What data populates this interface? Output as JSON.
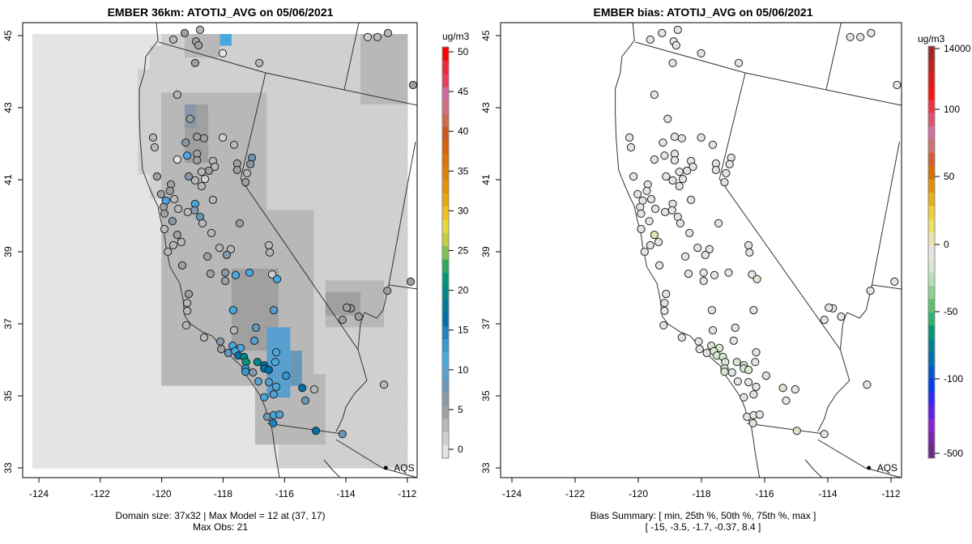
{
  "left_panel": {
    "title": "EMBER 36km: ATOTIJ_AVG on 05/06/2021",
    "colorbar_unit": "ug/m3",
    "colorbar_ticks": [
      "0",
      "5",
      "10",
      "15",
      "20",
      "25",
      "30",
      "35",
      "40",
      "45",
      "50"
    ],
    "colorbar_tick_values": [
      0,
      5,
      10,
      15,
      20,
      25,
      30,
      35,
      40,
      45,
      50
    ],
    "colorbar_colors": [
      "#e4e4e4",
      "#d0d0d0",
      "#b8b8b8",
      "#a0a0a0",
      "#8898a8",
      "#6898b8",
      "#58a0d0",
      "#48a8e0",
      "#3898d0",
      "#2080c0",
      "#0070a8",
      "#007898",
      "#008888",
      "#009878",
      "#30a860",
      "#80c050",
      "#c0d040",
      "#e8d838",
      "#f0c020",
      "#e8a808",
      "#e89000",
      "#e08000",
      "#e07008",
      "#d86008",
      "#d05818",
      "#d06850",
      "#d07080",
      "#d068a0",
      "#e8405a",
      "#f0283c",
      "#ff0000"
    ],
    "colorbar_range": [
      -1.1,
      50.6
    ],
    "footer_line1": "Domain size: 37x32 | Max Model = 12 at (37, 17)",
    "footer_line2": "Max Obs: 21"
  },
  "right_panel": {
    "title": "EMBER bias: ATOTIJ_AVG on 05/06/2021",
    "colorbar_unit": "ug/m3",
    "colorbar_ticks": [
      "14000",
      "100",
      "50",
      "0",
      "-50",
      "-100",
      "-500"
    ],
    "colorbar_colors": [
      "#6a2a8a",
      "#7a24a8",
      "#8a20d0",
      "#6020e8",
      "#3028f8",
      "#0040f0",
      "#0058d0",
      "#0070b0",
      "#008090",
      "#009870",
      "#30b070",
      "#60c070",
      "#90d090",
      "#b8e0b8",
      "#d8e8d0",
      "#e4e4e4",
      "#e8e4b0",
      "#f0e060",
      "#f0d030",
      "#e8b010",
      "#e09000",
      "#d87000",
      "#d06030",
      "#d07070",
      "#d070a0",
      "#e05070",
      "#f03040",
      "#ff1010",
      "#e01818",
      "#c02020",
      "#a02828"
    ],
    "footer_line1": "Bias Summary: [ min, 25th %, 50th %, 75th %, max ]",
    "footer_line2": "[ -15,   -3.5,   -1.7,   -0.37,   8.4 ]"
  },
  "axes": {
    "x_ticks": [
      "-124",
      "-122",
      "-120",
      "-118",
      "-116",
      "-114",
      "-112"
    ],
    "x_tick_values": [
      -124,
      -122,
      -120,
      -118,
      -116,
      -114,
      -112
    ],
    "y_ticks": [
      "33",
      "35",
      "37",
      "39",
      "41",
      "43",
      "45"
    ],
    "y_tick_values": [
      33,
      35,
      37,
      39,
      41,
      43,
      45
    ]
  },
  "network_label": "AQS",
  "network_marker": [
    -112.7,
    33.0
  ],
  "grid": {
    "cols": 32,
    "rows": 37,
    "ocean_value": 0,
    "land_value": 1.5,
    "patches": [
      [
        13,
        0,
        15,
        1,
        3.5
      ],
      [
        28,
        0,
        31,
        5,
        3
      ],
      [
        11,
        5,
        19,
        14,
        3
      ],
      [
        13,
        6,
        14,
        10,
        4.5
      ],
      [
        11,
        15,
        23,
        29,
        3
      ],
      [
        17,
        20,
        20,
        26,
        4.5
      ],
      [
        25,
        21,
        29,
        24,
        3
      ],
      [
        25,
        22,
        27,
        23,
        4
      ],
      [
        19,
        29,
        24,
        34,
        3
      ],
      [
        20,
        25,
        21,
        30,
        9
      ],
      [
        22,
        27,
        22,
        29,
        8
      ],
      [
        16,
        0,
        16,
        0,
        11
      ],
      [
        13,
        6,
        13,
        7,
        6
      ]
    ]
  },
  "sites": [
    [
      -119.25,
      45.07,
      4,
      -1
    ],
    [
      -118.75,
      45.16,
      3,
      -1
    ],
    [
      -119.62,
      44.89,
      3,
      -1
    ],
    [
      -118.88,
      44.84,
      4,
      -1
    ],
    [
      -118.8,
      44.73,
      4,
      -1
    ],
    [
      -118.01,
      44.51,
      0,
      -1
    ],
    [
      -118.91,
      44.24,
      4,
      -1
    ],
    [
      -116.82,
      44.24,
      3,
      -1
    ],
    [
      -113.29,
      44.96,
      2,
      -1
    ],
    [
      -112.97,
      44.96,
      3,
      -1
    ],
    [
      -112.63,
      45.07,
      3,
      -1
    ],
    [
      -111.81,
      43.63,
      4,
      -1
    ],
    [
      -119.49,
      43.36,
      3,
      -1
    ],
    [
      -119.07,
      42.69,
      4,
      -1
    ],
    [
      -120.28,
      42.17,
      3,
      -1
    ],
    [
      -120.23,
      41.9,
      3,
      -1
    ],
    [
      -119.22,
      42.03,
      7,
      -1
    ],
    [
      -118.85,
      42.19,
      4,
      -1
    ],
    [
      -118.62,
      42.15,
      4,
      -1
    ],
    [
      -118.01,
      42.17,
      2,
      -1
    ],
    [
      -117.64,
      41.97,
      3,
      -1
    ],
    [
      -119.17,
      41.67,
      12,
      -5
    ],
    [
      -119.49,
      41.56,
      0,
      -1
    ],
    [
      -118.85,
      41.72,
      4,
      -1
    ],
    [
      -118.85,
      41.54,
      5,
      -1
    ],
    [
      -118.33,
      41.52,
      3,
      -1
    ],
    [
      -118.27,
      41.36,
      3,
      -1
    ],
    [
      -117.54,
      41.45,
      4,
      -1
    ],
    [
      -117.06,
      41.61,
      8,
      -2
    ],
    [
      -117.11,
      41.43,
      7,
      -1
    ],
    [
      -117.54,
      41.27,
      4,
      -1
    ],
    [
      -117.22,
      41.18,
      3,
      -1
    ],
    [
      -117.27,
      40.93,
      4,
      -1
    ],
    [
      -120.15,
      41.09,
      5,
      -1
    ],
    [
      -119.12,
      41.09,
      6,
      -1
    ],
    [
      -118.7,
      41.22,
      3,
      -1
    ],
    [
      -118.46,
      41.25,
      4,
      -1
    ],
    [
      -118.91,
      40.98,
      3,
      -1
    ],
    [
      -118.59,
      41.02,
      2,
      -1
    ],
    [
      -118.7,
      40.82,
      3,
      -1
    ],
    [
      -119.7,
      40.87,
      4,
      -1
    ],
    [
      -119.73,
      40.69,
      4,
      -1
    ],
    [
      -120.02,
      40.6,
      5,
      -1
    ],
    [
      -119.86,
      40.42,
      12,
      -4
    ],
    [
      -119.59,
      40.46,
      3,
      -1
    ],
    [
      -119.94,
      40.24,
      5,
      -1
    ],
    [
      -119.46,
      40.19,
      3,
      -1
    ],
    [
      -118.91,
      40.33,
      12,
      -5
    ],
    [
      -118.93,
      40.15,
      6,
      -2
    ],
    [
      -119.15,
      40.1,
      3,
      -1
    ],
    [
      -118.33,
      40.44,
      3,
      -1
    ],
    [
      -119.91,
      40.06,
      4,
      -1
    ],
    [
      -118.75,
      39.97,
      8,
      -3
    ],
    [
      -118.67,
      39.79,
      3,
      -1
    ],
    [
      -119.65,
      39.85,
      6,
      -1
    ],
    [
      -117.46,
      39.79,
      4,
      -1
    ],
    [
      -119.91,
      39.63,
      3,
      -1
    ],
    [
      -118.38,
      39.52,
      3,
      -1
    ],
    [
      -119.49,
      39.47,
      5,
      8.4
    ],
    [
      -119.36,
      39.27,
      3,
      -1
    ],
    [
      -119.62,
      39.18,
      3,
      -1
    ],
    [
      -119.8,
      39.0,
      3,
      -1
    ],
    [
      -118.12,
      39.11,
      3,
      -1
    ],
    [
      -117.75,
      39.07,
      3,
      -1
    ],
    [
      -116.51,
      39.18,
      3,
      -1
    ],
    [
      -116.48,
      38.98,
      3,
      -1
    ],
    [
      -117.88,
      38.91,
      6,
      -1
    ],
    [
      -118.51,
      38.87,
      4,
      -1
    ],
    [
      -119.33,
      38.62,
      5,
      -1
    ],
    [
      -118.41,
      38.39,
      4,
      -1
    ],
    [
      -117.93,
      38.42,
      6,
      -1
    ],
    [
      -117.93,
      38.19,
      4,
      -1
    ],
    [
      -117.59,
      38.35,
      12,
      -4
    ],
    [
      -117.14,
      38.42,
      11,
      -3
    ],
    [
      -116.4,
      38.37,
      2,
      -1
    ],
    [
      -116.24,
      38.24,
      11,
      -6
    ],
    [
      -119.12,
      37.83,
      4,
      -1
    ],
    [
      -119.17,
      37.58,
      3,
      -1
    ],
    [
      -119.17,
      37.36,
      3,
      -1
    ],
    [
      -117.67,
      37.38,
      11,
      -2
    ],
    [
      -116.35,
      37.38,
      10,
      -1
    ],
    [
      -119.2,
      36.96,
      3,
      -1
    ],
    [
      -118.62,
      36.62,
      3,
      -1
    ],
    [
      -117.64,
      36.82,
      3,
      -1
    ],
    [
      -116.93,
      36.89,
      8,
      -2
    ],
    [
      -118.09,
      36.51,
      6,
      -2
    ],
    [
      -118.06,
      36.3,
      4,
      -1
    ],
    [
      -117.69,
      36.39,
      11,
      -7
    ],
    [
      -117.43,
      36.33,
      12,
      -6
    ],
    [
      -117.83,
      36.19,
      8,
      -5
    ],
    [
      -117.61,
      36.24,
      12,
      -8
    ],
    [
      -117.51,
      36.12,
      16,
      -9
    ],
    [
      -117.32,
      36.08,
      19,
      -10
    ],
    [
      -117.25,
      35.94,
      21,
      -15
    ],
    [
      -117.27,
      35.76,
      13,
      -8
    ],
    [
      -117.27,
      35.67,
      13,
      -6
    ],
    [
      -116.98,
      36.53,
      10,
      -3
    ],
    [
      -116.88,
      35.94,
      19,
      -9
    ],
    [
      -116.66,
      35.85,
      17,
      -10
    ],
    [
      -116.66,
      35.76,
      16,
      -8
    ],
    [
      -116.51,
      35.72,
      16,
      -9
    ],
    [
      -117.03,
      35.65,
      7,
      -2
    ],
    [
      -116.27,
      36.21,
      11,
      -3
    ],
    [
      -116.3,
      35.94,
      11,
      -4
    ],
    [
      -115.95,
      35.56,
      13,
      -7
    ],
    [
      -116.85,
      35.4,
      9,
      -3
    ],
    [
      -116.51,
      35.38,
      9,
      -5
    ],
    [
      -116.27,
      35.25,
      11,
      -3
    ],
    [
      -116.35,
      35.04,
      10,
      -4
    ],
    [
      -116.66,
      34.96,
      11,
      -5
    ],
    [
      -115.42,
      35.22,
      17,
      -10
    ],
    [
      -115.03,
      35.18,
      3,
      -1
    ],
    [
      -115.32,
      34.87,
      8,
      -4
    ],
    [
      -116.56,
      34.42,
      8,
      -3
    ],
    [
      -116.35,
      34.46,
      11,
      -4
    ],
    [
      -116.16,
      34.48,
      10,
      -3
    ],
    [
      -116.37,
      34.24,
      15,
      -7
    ],
    [
      -114.98,
      34.03,
      17,
      -8
    ],
    [
      -114.11,
      33.94,
      8,
      -4
    ],
    [
      -113.84,
      37.43,
      6,
      -1
    ],
    [
      -113.97,
      37.45,
      4,
      -1
    ],
    [
      -114.11,
      37.11,
      4,
      -1
    ],
    [
      -113.58,
      37.2,
      4,
      -1
    ],
    [
      -112.65,
      37.92,
      4,
      -1
    ],
    [
      -111.89,
      38.17,
      4,
      -1
    ],
    [
      -112.76,
      35.31,
      3,
      -1
    ]
  ]
}
